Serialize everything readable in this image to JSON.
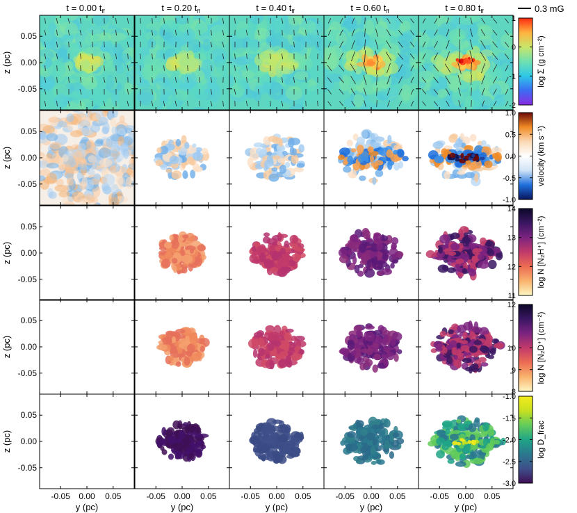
{
  "chart_data": {
    "type": "heatmap",
    "title": "",
    "columns": [
      {
        "label": "t = 0.00 t",
        "sub": "ff"
      },
      {
        "label": "t = 0.20 t",
        "sub": "ff"
      },
      {
        "label": "t = 0.40 t",
        "sub": "ff"
      },
      {
        "label": "t = 0.60 t",
        "sub": "ff"
      },
      {
        "label": "t = 0.80 t",
        "sub": "ff"
      }
    ],
    "scale_bar": {
      "label": "0.3 mG"
    },
    "xlabel": "y (pc)",
    "ylabel": "z (pc)",
    "xlim": [
      -0.09,
      0.09
    ],
    "ylim": [
      -0.09,
      0.09
    ],
    "xticks": [
      "-0.05",
      "0.00",
      "0.05"
    ],
    "yticks": [
      "0.05",
      "0.00",
      "-0.05"
    ],
    "rows": [
      {
        "quantity": "column density",
        "colorbar_label": "log Σ (g cm⁻²)",
        "colormap": "rainbow",
        "range": [
          -2,
          1
        ],
        "ticks": [
          "1",
          "0",
          "-1",
          "-2"
        ],
        "empty_columns": []
      },
      {
        "quantity": "velocity",
        "colorbar_label": "velocity (km s⁻¹)",
        "colormap": "diverging blue-white-red",
        "range": [
          -1.0,
          1.0
        ],
        "ticks": [
          "1.0",
          "0.5",
          "0.0",
          "-0.5",
          "-1.0"
        ],
        "empty_columns": []
      },
      {
        "quantity": "N2H+ column density",
        "colorbar_label": "log N [N₂H⁺] (cm⁻²)",
        "colormap": "magma (reversed)",
        "range": [
          11,
          14
        ],
        "ticks": [
          "14",
          "13",
          "12",
          "11"
        ],
        "empty_columns": [
          0
        ]
      },
      {
        "quantity": "N2D+ column density",
        "colorbar_label": "log N [N₂D⁺] (cm⁻²)",
        "colormap": "magma (reversed)",
        "range": [
          8,
          12
        ],
        "ticks": [
          "12",
          "10",
          "9",
          "8"
        ],
        "empty_columns": [
          0
        ]
      },
      {
        "quantity": "deuterium fraction",
        "colorbar_label": "log D_frac",
        "colormap": "viridis",
        "range": [
          -3.0,
          -1.0
        ],
        "ticks": [
          "-1.0",
          "-1.5",
          "-2.0",
          "-2.5",
          "-3.0"
        ],
        "empty_columns": [
          0
        ]
      }
    ],
    "grid": false,
    "magnetic_field_vectors_row": 0
  },
  "colors": {
    "rainbow": [
      "#8a2be2",
      "#3b6cf2",
      "#2fc8e8",
      "#6fe0b0",
      "#c8e66a",
      "#ffb340",
      "#ff2a10"
    ],
    "diverging": [
      "#08145c",
      "#1f6fdc",
      "#cfe3f7",
      "#ffffff",
      "#fbd9b5",
      "#f08a24",
      "#6a0a08"
    ],
    "magma_r": [
      "#fdf7c3",
      "#f9b36e",
      "#ec6c53",
      "#c13a6a",
      "#7c2380",
      "#3a1662",
      "#0c0829"
    ],
    "viridis": [
      "#3f0f55",
      "#3e4f8a",
      "#2a788e",
      "#20a486",
      "#62cb5b",
      "#c8e020",
      "#f4ec1c"
    ]
  }
}
